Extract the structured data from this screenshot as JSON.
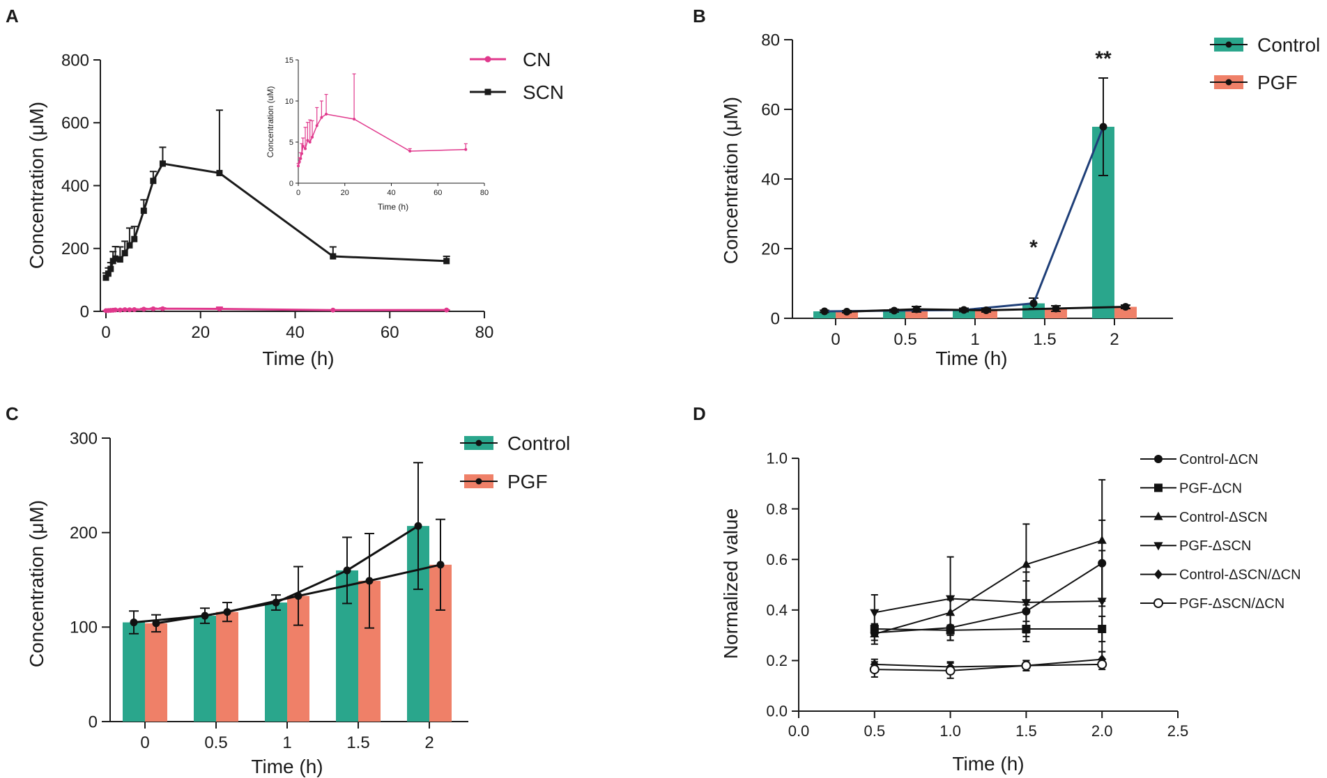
{
  "colors": {
    "axis": "#1a1a1a",
    "cn": "#e0388c",
    "scn": "#1a1a1a",
    "control_bar": "#2aa68c",
    "pgf_bar": "#ef8068",
    "control_line_b": "#1f3f78",
    "series_black": "#111111"
  },
  "chart_data": [
    {
      "panel": "A",
      "type": "line",
      "panel_label": "A",
      "xlabel": "Time (h)",
      "ylabel": "Concentration (μM)",
      "xlim": [
        0,
        80
      ],
      "ylim": [
        0,
        800
      ],
      "xticks": [
        0,
        20,
        40,
        60,
        80
      ],
      "yticks": [
        0,
        200,
        400,
        600,
        800
      ],
      "legend_position": "top-right",
      "series": [
        {
          "name": "CN",
          "marker": "circle",
          "x": [
            0,
            0.5,
            1,
            1.5,
            2,
            3,
            4,
            5,
            6,
            8,
            10,
            12,
            24,
            48,
            72
          ],
          "values": [
            2.1,
            2.6,
            3.0,
            3.6,
            4.5,
            4.2,
            5.2,
            5.0,
            5.6,
            7.0,
            8.0,
            8.4,
            7.8,
            3.9,
            4.1
          ],
          "err": [
            0.3,
            0.5,
            0.7,
            1.2,
            1.0,
            2.6,
            2.2,
            2.7,
            2.0,
            2.2,
            2.0,
            2.4,
            5.5,
            0.3,
            0.7
          ]
        },
        {
          "name": "SCN",
          "marker": "square",
          "x": [
            0,
            0.5,
            1,
            1.5,
            2,
            3,
            4,
            5,
            6,
            8,
            10,
            12,
            24,
            48,
            72
          ],
          "values": [
            107,
            120,
            135,
            160,
            168,
            165,
            185,
            210,
            230,
            320,
            415,
            470,
            440,
            175,
            160
          ],
          "err": [
            15,
            18,
            20,
            30,
            38,
            40,
            38,
            55,
            40,
            35,
            30,
            52,
            200,
            30,
            15
          ]
        }
      ],
      "inset": {
        "type": "line",
        "series_name": "CN",
        "xlabel": "Time (h)",
        "ylabel": "Concentration (uM)",
        "xlim": [
          0,
          80
        ],
        "ylim": [
          0,
          15
        ],
        "xticks": [
          0,
          20,
          40,
          60,
          80
        ],
        "yticks": [
          0,
          5,
          10,
          15
        ]
      }
    },
    {
      "panel": "B",
      "type": "bar",
      "panel_label": "B",
      "xlabel": "Time (h)",
      "ylabel": "Concentration (μM)",
      "categories": [
        "0",
        "0.5",
        "1",
        "1.5",
        "2"
      ],
      "ylim": [
        0,
        80
      ],
      "yticks": [
        0,
        20,
        40,
        60,
        80
      ],
      "legend_position": "top-right",
      "series": [
        {
          "name": "Control",
          "values": [
            2.0,
            2.2,
            2.4,
            4.3,
            55.0
          ],
          "err": [
            0.3,
            0.4,
            0.5,
            1.5,
            14.0
          ]
        },
        {
          "name": "PGF",
          "values": [
            1.9,
            2.6,
            2.3,
            2.8,
            3.3
          ],
          "err": [
            0.3,
            0.8,
            0.5,
            0.8,
            0.5
          ]
        }
      ],
      "annotations": [
        {
          "text": "*",
          "category": "1.5"
        },
        {
          "text": "**",
          "category": "2"
        }
      ]
    },
    {
      "panel": "C",
      "type": "bar",
      "panel_label": "C",
      "xlabel": "Time (h)",
      "ylabel": "Concentration (μM)",
      "categories": [
        "0",
        "0.5",
        "1",
        "1.5",
        "2"
      ],
      "ylim": [
        0,
        300
      ],
      "yticks": [
        0,
        100,
        200,
        300
      ],
      "legend_position": "top-right",
      "series": [
        {
          "name": "Control",
          "values": [
            105,
            112,
            126,
            160,
            207
          ],
          "err": [
            12,
            8,
            8,
            35,
            67
          ]
        },
        {
          "name": "PGF",
          "values": [
            104,
            116,
            133,
            149,
            166
          ],
          "err": [
            9,
            10,
            31,
            50,
            48
          ]
        }
      ]
    },
    {
      "panel": "D",
      "type": "line",
      "panel_label": "D",
      "xlabel": "Time (h)",
      "ylabel": "Normalized value",
      "xlim": [
        0.0,
        2.5
      ],
      "ylim": [
        0.0,
        1.0
      ],
      "xticks": [
        "0.0",
        "0.5",
        "1.0",
        "1.5",
        "2.0",
        "2.5"
      ],
      "yticks": [
        "0.0",
        "0.2",
        "0.4",
        "0.6",
        "0.8",
        "1.0"
      ],
      "legend_position": "right",
      "series": [
        {
          "name": "Control-ΔCN",
          "marker": "circle",
          "x": [
            0.5,
            1.0,
            1.5,
            2.0
          ],
          "values": [
            0.31,
            0.33,
            0.395,
            0.585
          ],
          "err": [
            0.03,
            0.05,
            0.12,
            0.17
          ]
        },
        {
          "name": "PGF-ΔCN",
          "marker": "square",
          "x": [
            0.5,
            1.0,
            1.5,
            2.0
          ],
          "values": [
            0.325,
            0.32,
            0.325,
            0.325
          ],
          "err": [
            0.02,
            0.02,
            0.03,
            0.05
          ]
        },
        {
          "name": "Control-ΔSCN",
          "marker": "triangle-up",
          "x": [
            0.5,
            1.0,
            1.5,
            2.0
          ],
          "values": [
            0.305,
            0.39,
            0.58,
            0.675
          ],
          "err": [
            0.04,
            0.05,
            0.16,
            0.24
          ]
        },
        {
          "name": "PGF-ΔSCN",
          "marker": "triangle-down",
          "x": [
            0.5,
            1.0,
            1.5,
            2.0
          ],
          "values": [
            0.39,
            0.445,
            0.43,
            0.435
          ],
          "err": [
            0.07,
            0.165,
            0.12,
            0.2
          ]
        },
        {
          "name": "Control-ΔSCN/ΔCN",
          "marker": "diamond",
          "x": [
            0.5,
            1.0,
            1.5,
            2.0
          ],
          "values": [
            0.185,
            0.175,
            0.18,
            0.205
          ],
          "err": [
            0.02,
            0.02,
            0.02,
            0.03
          ]
        },
        {
          "name": "PGF-ΔSCN/ΔCN",
          "marker": "open-circle",
          "x": [
            0.5,
            1.0,
            1.5,
            2.0
          ],
          "values": [
            0.165,
            0.16,
            0.18,
            0.185
          ],
          "err": [
            0.03,
            0.03,
            0.02,
            0.02
          ]
        }
      ]
    }
  ]
}
